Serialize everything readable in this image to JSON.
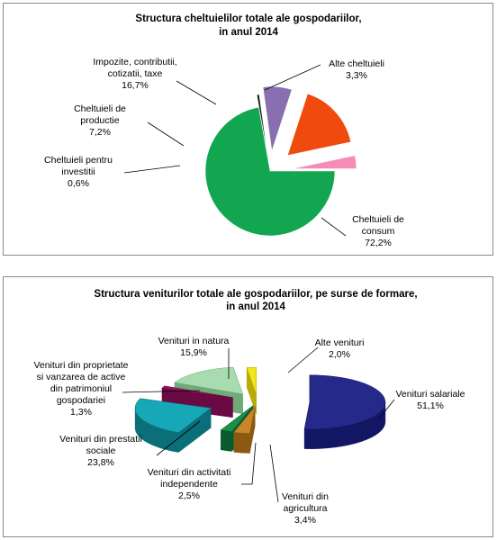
{
  "colors": {
    "green": "#13a651",
    "green_dark": "#0a7a37",
    "red": "#f04b0f",
    "pink": "#f58cb6",
    "purple": "#8a6fb0",
    "black": "#141414",
    "navy": "#252a8a",
    "navy_dark": "#131663",
    "teal": "#16a8b6",
    "teal_dark": "#0a6f79",
    "mint": "#a8dcb0",
    "mint_dark": "#6faa78",
    "magenta": "#a0126a",
    "yellow": "#f2e51c",
    "orange_brown": "#c98626",
    "darkgreen": "#1a8f47"
  },
  "chart_data": [
    {
      "type": "pie",
      "title_lines": [
        "Structura cheltuielilor totale ale gospodariilor,",
        "in anul 2014"
      ],
      "slices": [
        {
          "name_lines": [
            "Cheltuieli de",
            "consum"
          ],
          "pct_label": "72,2%",
          "value": 72.2,
          "color": "#13a651"
        },
        {
          "name_lines": [
            "Cheltuieli pentru",
            "investitii"
          ],
          "pct_label": "0,6%",
          "value": 0.6,
          "color": "#141414"
        },
        {
          "name_lines": [
            "Cheltuieli de",
            "productie"
          ],
          "pct_label": "7,2%",
          "value": 7.2,
          "color": "#8a6fb0"
        },
        {
          "name_lines": [
            "Impozite, contributii,",
            "cotizatii, taxe"
          ],
          "pct_label": "16,7%",
          "value": 16.7,
          "color": "#f04b0f"
        },
        {
          "name_lines": [
            "Alte cheltuieli"
          ],
          "pct_label": "3,3%",
          "value": 3.3,
          "color": "#f58cb6"
        }
      ]
    },
    {
      "type": "pie",
      "title_lines": [
        "Structura veniturilor totale ale gospodariilor, pe surse de formare,",
        "in anul  2014"
      ],
      "slices": [
        {
          "name_lines": [
            "Venituri salariale"
          ],
          "pct_label": "51,1%",
          "value": 51.1,
          "color": "#252a8a"
        },
        {
          "name_lines": [
            "Venituri din",
            "agricultura"
          ],
          "pct_label": "3,4%",
          "value": 3.4,
          "color": "#c98626"
        },
        {
          "name_lines": [
            "Venituri din activitati",
            "independente"
          ],
          "pct_label": "2,5%",
          "value": 2.5,
          "color": "#1a8f47"
        },
        {
          "name_lines": [
            "Venituri din prestatii",
            "sociale"
          ],
          "pct_label": "23,8%",
          "value": 23.8,
          "color": "#16a8b6"
        },
        {
          "name_lines": [
            "Venituri din proprietate",
            "si vanzarea de active",
            "din patrimoniul",
            "gospodariei"
          ],
          "pct_label": "1,3%",
          "value": 1.3,
          "color": "#a0126a"
        },
        {
          "name_lines": [
            "Venituri in natura"
          ],
          "pct_label": "15,9%",
          "value": 15.9,
          "color": "#a8dcb0"
        },
        {
          "name_lines": [
            "Alte venituri"
          ],
          "pct_label": "2,0%",
          "value": 2.0,
          "color": "#f2e51c"
        }
      ]
    }
  ]
}
